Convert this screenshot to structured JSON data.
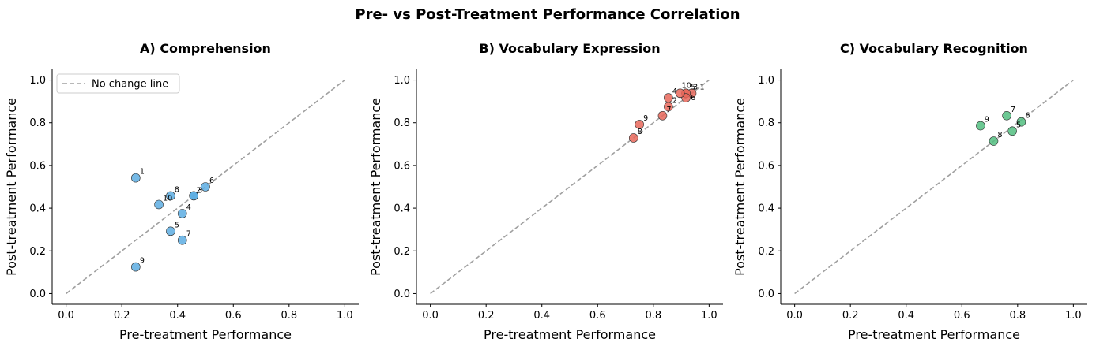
{
  "suptitle": "Pre- vs Post-Treatment Performance Correlation",
  "chart_data": [
    {
      "type": "scatter",
      "title": "A) Comprehension",
      "xlabel": "Pre-treatment Performance",
      "ylabel": "Post-treatment Performance",
      "xlim": [
        -0.05,
        1.05
      ],
      "ylim": [
        -0.05,
        1.05
      ],
      "xticks": [
        "0.0",
        "0.2",
        "0.4",
        "0.6",
        "0.8",
        "1.0"
      ],
      "yticks": [
        "0.0",
        "0.2",
        "0.4",
        "0.6",
        "0.8",
        "1.0"
      ],
      "color": "#5dade2",
      "legend": {
        "label": "No change line",
        "position": "top-left"
      },
      "points": [
        {
          "label": "1",
          "x": 0.25,
          "y": 0.542
        },
        {
          "label": "2",
          "x": 0.458,
          "y": 0.458
        },
        {
          "label": "3",
          "x": 0.458,
          "y": 0.458
        },
        {
          "label": "4",
          "x": 0.417,
          "y": 0.375
        },
        {
          "label": "5",
          "x": 0.375,
          "y": 0.292
        },
        {
          "label": "6",
          "x": 0.5,
          "y": 0.5
        },
        {
          "label": "7",
          "x": 0.417,
          "y": 0.25
        },
        {
          "label": "8",
          "x": 0.375,
          "y": 0.458
        },
        {
          "label": "9",
          "x": 0.25,
          "y": 0.125
        },
        {
          "label": "10",
          "x": 0.333,
          "y": 0.417
        }
      ]
    },
    {
      "type": "scatter",
      "title": "B) Vocabulary Expression",
      "xlabel": "Pre-treatment Performance",
      "ylabel": "Post-treatment Performance",
      "xlim": [
        -0.05,
        1.05
      ],
      "ylim": [
        -0.05,
        1.05
      ],
      "xticks": [
        "0.0",
        "0.2",
        "0.4",
        "0.6",
        "0.8",
        "1.0"
      ],
      "yticks": [
        "0.0",
        "0.2",
        "0.4",
        "0.6",
        "0.8",
        "1.0"
      ],
      "color": "#e8675a",
      "points": [
        {
          "label": "1",
          "x": 0.938,
          "y": 0.938
        },
        {
          "label": "2",
          "x": 0.854,
          "y": 0.875
        },
        {
          "label": "3",
          "x": 0.917,
          "y": 0.938
        },
        {
          "label": "4",
          "x": 0.854,
          "y": 0.917
        },
        {
          "label": "5",
          "x": 0.917,
          "y": 0.938
        },
        {
          "label": "6",
          "x": 0.917,
          "y": 0.917
        },
        {
          "label": "7",
          "x": 0.833,
          "y": 0.833
        },
        {
          "label": "8",
          "x": 0.729,
          "y": 0.729
        },
        {
          "label": "9",
          "x": 0.75,
          "y": 0.792
        },
        {
          "label": "10",
          "x": 0.896,
          "y": 0.938
        }
      ]
    },
    {
      "type": "scatter",
      "title": "C) Vocabulary Recognition",
      "xlabel": "Pre-treatment Performance",
      "ylabel": "Post-treatment Performance",
      "xlim": [
        -0.05,
        1.05
      ],
      "ylim": [
        -0.05,
        1.05
      ],
      "xticks": [
        "0.0",
        "0.2",
        "0.4",
        "0.6",
        "0.8",
        "1.0"
      ],
      "yticks": [
        "0.0",
        "0.2",
        "0.4",
        "0.6",
        "0.8",
        "1.0"
      ],
      "color": "#52be80",
      "points": [
        {
          "label": "5",
          "x": 0.781,
          "y": 0.761
        },
        {
          "label": "6",
          "x": 0.813,
          "y": 0.804
        },
        {
          "label": "7",
          "x": 0.761,
          "y": 0.833
        },
        {
          "label": "8",
          "x": 0.714,
          "y": 0.714
        },
        {
          "label": "9",
          "x": 0.667,
          "y": 0.786
        }
      ]
    }
  ]
}
